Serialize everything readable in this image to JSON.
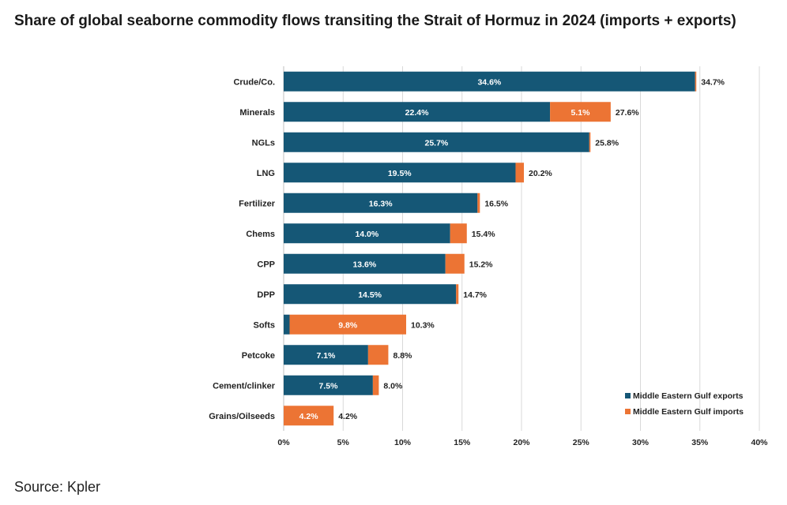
{
  "title": "Share of global seaborne commodity flows transiting the Strait of Hormuz in 2024 (imports + exports)",
  "source": "Source: Kpler",
  "colors": {
    "exports": "#155776",
    "imports": "#ec7434",
    "gridline": "#d9d9d9",
    "axis": "#bfbfbf"
  },
  "chart_data": {
    "type": "bar",
    "orientation": "horizontal",
    "stacked": true,
    "title": "Share of global seaborne commodity flows transiting the Strait of Hormuz in 2024 (imports + exports)",
    "xlabel": "",
    "ylabel": "",
    "xlim": [
      0,
      40
    ],
    "xticks": [
      0,
      5,
      10,
      15,
      20,
      25,
      30,
      35,
      40
    ],
    "xtick_labels": [
      "0%",
      "5%",
      "10%",
      "15%",
      "20%",
      "25%",
      "30%",
      "35%",
      "40%"
    ],
    "grid": "vertical",
    "legend_position": "bottom-right",
    "categories": [
      "Crude/Co.",
      "Minerals",
      "NGLs",
      "LNG",
      "Fertilizer",
      "Chems",
      "CPP",
      "DPP",
      "Softs",
      "Petcoke",
      "Cement/clinker",
      "Grains/Oilseeds"
    ],
    "series": [
      {
        "name": "Middle Eastern Gulf exports",
        "values": [
          34.6,
          22.4,
          25.7,
          19.5,
          16.3,
          14.0,
          13.6,
          14.5,
          0.5,
          7.1,
          7.5,
          0.0
        ],
        "labels": [
          "34.6%",
          "22.4%",
          "25.7%",
          "19.5%",
          "16.3%",
          "14.0%",
          "13.6%",
          "14.5%",
          "",
          "7.1%",
          "7.5%",
          ""
        ]
      },
      {
        "name": "Middle Eastern Gulf imports",
        "values": [
          0.1,
          5.1,
          0.1,
          0.7,
          0.2,
          1.4,
          1.6,
          0.2,
          9.8,
          1.7,
          0.5,
          4.2
        ],
        "labels": [
          "",
          "5.1%",
          "",
          "",
          "",
          "",
          "",
          "",
          "9.8%",
          "",
          "",
          "4.2%"
        ]
      }
    ],
    "totals": [
      34.7,
      27.6,
      25.8,
      20.2,
      16.5,
      15.4,
      15.2,
      14.7,
      10.3,
      8.8,
      8.0,
      4.2
    ],
    "total_labels": [
      "34.7%",
      "27.6%",
      "25.8%",
      "20.2%",
      "16.5%",
      "15.4%",
      "15.2%",
      "14.7%",
      "10.3%",
      "8.8%",
      "8.0%",
      "4.2%"
    ]
  }
}
